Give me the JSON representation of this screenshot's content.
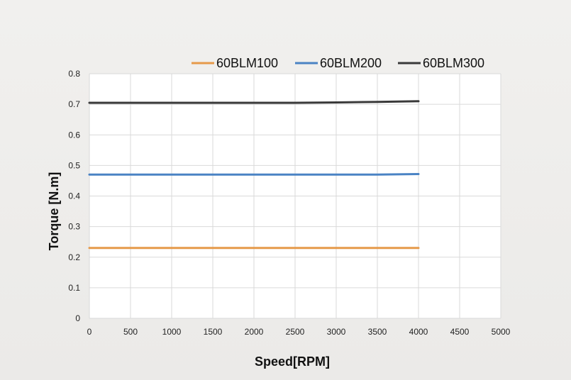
{
  "chart_data": {
    "type": "line",
    "title": "",
    "xlabel": "Speed[RPM]",
    "ylabel": "Torque [N.m]",
    "xlim": [
      0,
      5000
    ],
    "ylim": [
      0,
      0.8
    ],
    "xticks": [
      0,
      500,
      1000,
      1500,
      2000,
      2500,
      3000,
      3500,
      4000,
      4500,
      5000
    ],
    "yticks": [
      0,
      0.1,
      0.2,
      0.3,
      0.4,
      0.5,
      0.6,
      0.7,
      0.8
    ],
    "grid": true,
    "legend_position": "top-right",
    "series": [
      {
        "name": "60BLM100",
        "color": "#e69a4a",
        "x": [
          0,
          500,
          1000,
          1500,
          2000,
          2500,
          3000,
          3500,
          4000
        ],
        "y": [
          0.23,
          0.23,
          0.23,
          0.23,
          0.23,
          0.23,
          0.23,
          0.23,
          0.23
        ]
      },
      {
        "name": "60BLM200",
        "color": "#4a83c4",
        "x": [
          0,
          500,
          1000,
          1500,
          2000,
          2500,
          3000,
          3500,
          4000
        ],
        "y": [
          0.47,
          0.47,
          0.47,
          0.47,
          0.47,
          0.47,
          0.47,
          0.47,
          0.472
        ]
      },
      {
        "name": "60BLM300",
        "color": "#3a3a3a",
        "x": [
          0,
          500,
          1000,
          1500,
          2000,
          2500,
          3000,
          3500,
          4000
        ],
        "y": [
          0.705,
          0.705,
          0.705,
          0.705,
          0.705,
          0.705,
          0.706,
          0.708,
          0.71
        ]
      }
    ]
  }
}
